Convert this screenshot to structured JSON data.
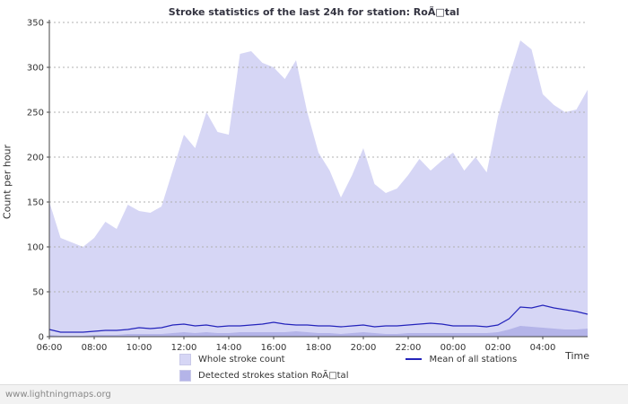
{
  "chart": {
    "title": "Stroke statistics of the last 24h for station: RoÃ□tal",
    "ylabel": "Count per hour",
    "xlabel": "Time"
  },
  "legend": {
    "whole": "Whole stroke count",
    "detected": "Detected strokes station RoÃ□tal",
    "mean": "Mean of all stations"
  },
  "footer": {
    "watermark": "www.lightningmaps.org"
  },
  "colors": {
    "whole": "#d6d6f5",
    "detected": "#b4b4e8",
    "mean": "#2424bb",
    "grid": "#b0b0b0",
    "axis": "#444444"
  },
  "chart_data": {
    "type": "area",
    "title": "Stroke statistics of the last 24h for station: RoÃ□tal",
    "xlabel": "Time",
    "ylabel": "Count per hour",
    "ylim": [
      0,
      350
    ],
    "y_ticks": [
      0,
      50,
      100,
      150,
      200,
      250,
      300,
      350
    ],
    "x_ticks": [
      "06:00",
      "08:00",
      "10:00",
      "12:00",
      "14:00",
      "16:00",
      "18:00",
      "20:00",
      "22:00",
      "00:00",
      "02:00",
      "04:00"
    ],
    "x_tick_step": 4,
    "x_interval_minutes": 30,
    "grid": "horizontal-dotted",
    "legend_position": "bottom",
    "series": [
      {
        "name": "Whole stroke count",
        "kind": "area",
        "color": "#d6d6f5",
        "values": [
          150,
          110,
          105,
          100,
          110,
          128,
          120,
          147,
          140,
          138,
          145,
          185,
          225,
          210,
          250,
          228,
          225,
          315,
          318,
          305,
          300,
          287,
          308,
          250,
          205,
          185,
          155,
          180,
          210,
          170,
          160,
          165,
          180,
          198,
          185,
          196,
          205,
          185,
          200,
          183,
          245,
          290,
          330,
          320,
          270,
          258,
          250,
          253,
          275
        ]
      },
      {
        "name": "Detected strokes station RoÃ□tal",
        "kind": "area",
        "color": "#b4b4e8",
        "values": [
          2,
          1,
          1,
          1,
          2,
          2,
          2,
          3,
          3,
          3,
          3,
          4,
          5,
          4,
          5,
          4,
          4,
          5,
          5,
          5,
          5,
          5,
          6,
          5,
          4,
          4,
          3,
          4,
          5,
          4,
          3,
          3,
          4,
          4,
          4,
          4,
          4,
          4,
          4,
          4,
          5,
          8,
          12,
          11,
          10,
          9,
          8,
          8,
          9
        ]
      },
      {
        "name": "Mean of all stations",
        "kind": "line",
        "color": "#2424bb",
        "values": [
          8,
          5,
          5,
          5,
          6,
          7,
          7,
          8,
          10,
          9,
          10,
          13,
          14,
          12,
          13,
          11,
          12,
          12,
          13,
          14,
          16,
          14,
          13,
          13,
          12,
          12,
          11,
          12,
          13,
          11,
          12,
          12,
          13,
          14,
          15,
          14,
          12,
          12,
          12,
          11,
          13,
          20,
          33,
          32,
          35,
          32,
          30,
          28,
          25
        ]
      }
    ]
  }
}
